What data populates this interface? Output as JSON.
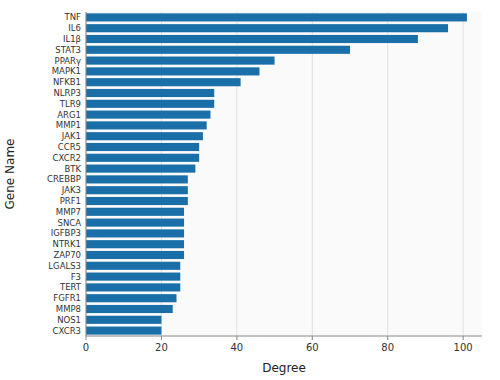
{
  "chart_data": {
    "type": "bar",
    "orientation": "horizontal",
    "categories": [
      "TNF",
      "IL6",
      "IL1β",
      "STAT3",
      "PPARγ",
      "MAPK1",
      "NFKB1",
      "NLRP3",
      "TLR9",
      "ARG1",
      "MMP1",
      "JAK1",
      "CCR5",
      "CXCR2",
      "BTK",
      "CREBBP",
      "JAK3",
      "PRF1",
      "MMP7",
      "SNCA",
      "IGFBP3",
      "NTRK1",
      "ZAP70",
      "LGALS3",
      "F3",
      "TERT",
      "FGFR1",
      "MMP8",
      "NOS1",
      "CXCR3"
    ],
    "values": [
      101,
      96,
      88,
      70,
      50,
      46,
      41,
      34,
      34,
      33,
      32,
      31,
      30,
      30,
      29,
      27,
      27,
      27,
      26,
      26,
      26,
      26,
      26,
      25,
      25,
      25,
      24,
      23,
      20,
      20
    ],
    "color": "#1a6fa8",
    "xlabel": "Degree",
    "ylabel": "Gene Name",
    "xlim": [
      0,
      105
    ],
    "xticks": [
      0,
      20,
      40,
      60,
      80,
      100
    ],
    "grid": true
  }
}
